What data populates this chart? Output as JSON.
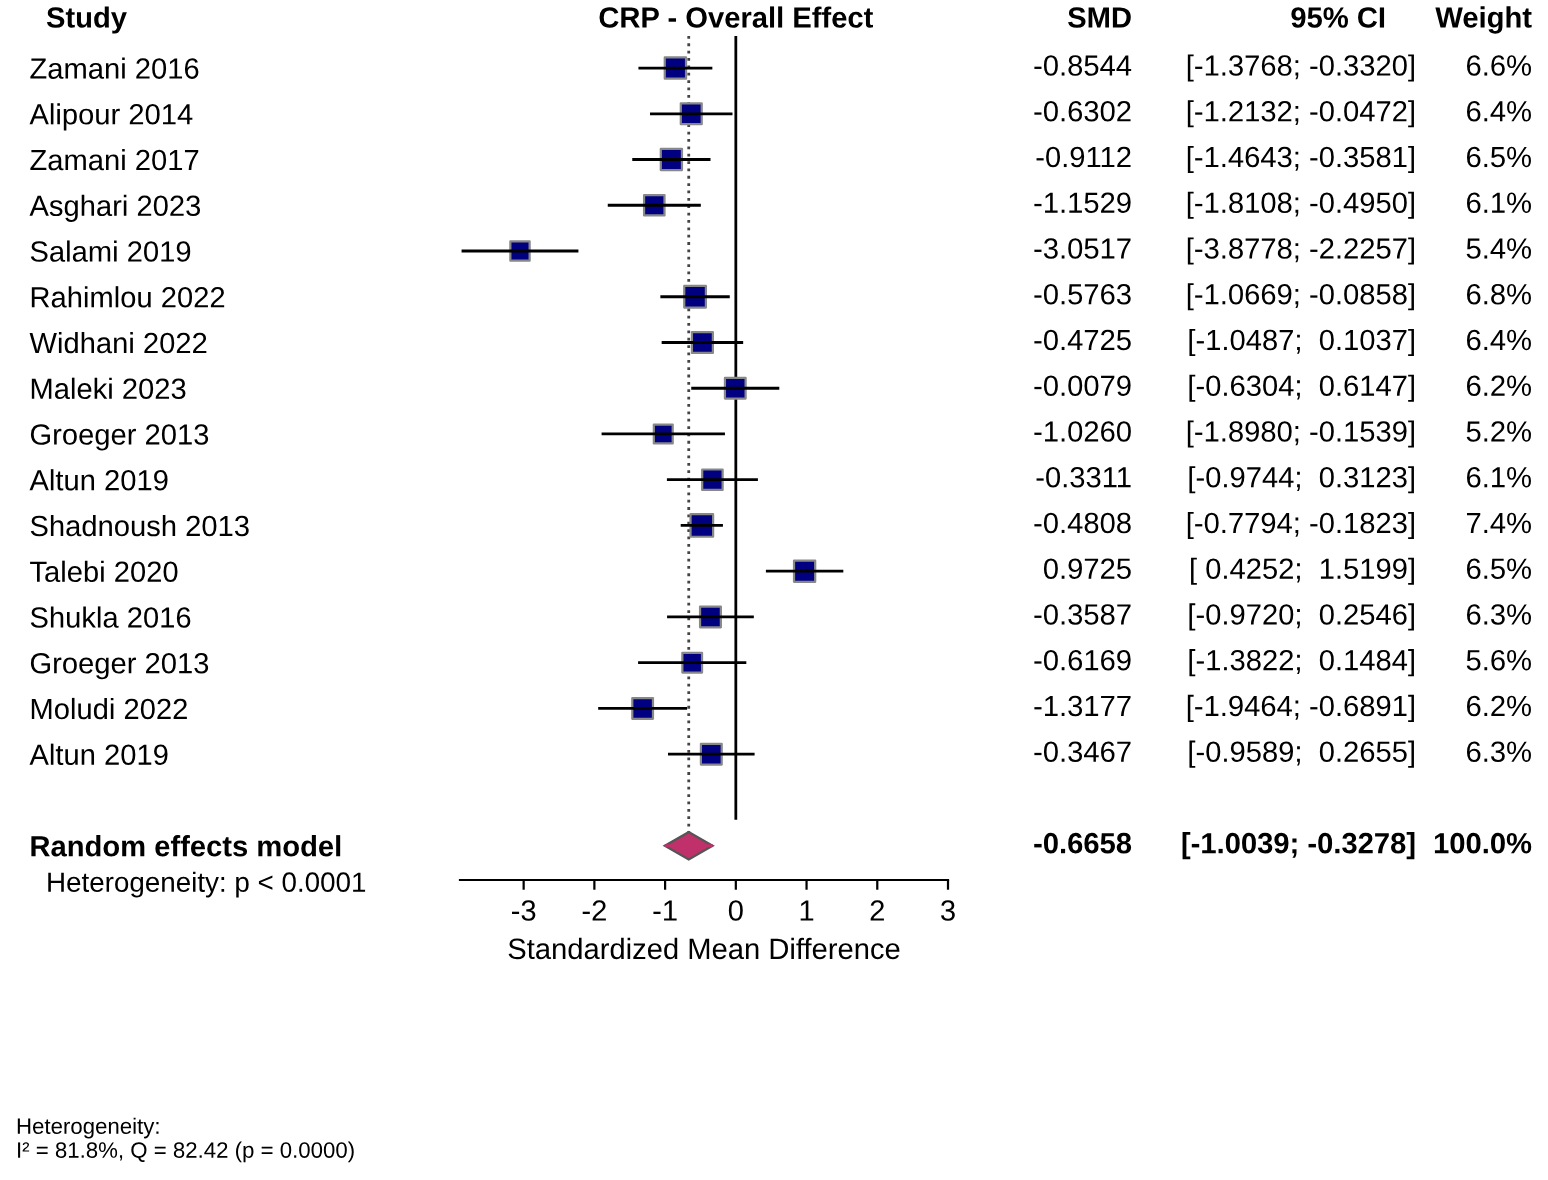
{
  "chart_data": {
    "type": "scatter",
    "orientation": "horizontal",
    "title": "CRP - Overall Effect",
    "xlabel": "Standardized Mean Difference",
    "categories": [
      "Zamani 2016",
      "Alipour 2014",
      "Zamani 2017",
      "Asghari 2023",
      "Salami 2019",
      "Rahimlou 2022",
      "Widhani 2022",
      "Maleki 2023",
      "Groeger 2013",
      "Altun 2019",
      "Shadnoush 2013",
      "Talebi 2020",
      "Shukla 2016",
      "Groeger 2013",
      "Moludi 2022",
      "Altun 2019",
      null,
      "Random effects model"
    ],
    "xlim": [
      -3.9,
      3
    ],
    "xticks": [
      -3,
      -2,
      -1,
      0,
      1,
      2,
      3
    ],
    "marker": "square",
    "series": [
      {
        "color": "#000080",
        "values": [
          -0.8544,
          -0.6302,
          -0.9112,
          -1.1529,
          -3.0517,
          -0.5763,
          -0.4725,
          -0.0079,
          -1.026,
          -0.3311,
          -0.4808,
          0.9725,
          -0.3587,
          -0.6169,
          -1.3177,
          -0.3467,
          null,
          null
        ],
        "errors": [
          [
            -1.3768,
            -0.332
          ],
          [
            -1.2132,
            -0.0472
          ],
          [
            -1.4643,
            -0.3581
          ],
          [
            -1.8108,
            -0.495
          ],
          [
            -3.8778,
            -2.2257
          ],
          [
            -1.0669,
            -0.0858
          ],
          [
            -1.0487,
            0.1037
          ],
          [
            -0.6304,
            0.6147
          ],
          [
            -1.898,
            -0.1539
          ],
          [
            -0.9744,
            0.3123
          ],
          [
            -0.7794,
            -0.1823
          ],
          [
            0.4252,
            1.5199
          ],
          [
            -0.972,
            0.2546
          ],
          [
            -1.3822,
            0.1484
          ],
          [
            -1.9464,
            -0.6891
          ],
          [
            -0.9589,
            0.2655
          ],
          null,
          null
        ],
        "sizes": [
          0.89,
          0.86,
          0.88,
          0.82,
          0.73,
          0.92,
          0.86,
          0.84,
          0.7,
          0.82,
          1,
          0.88,
          0.85,
          0.76,
          0.84,
          0.85,
          null,
          null
        ],
        "value_labels": [
          [
            "-0.8544",
            "[-1.3768; -0.3320]",
            "6.6%"
          ],
          [
            "-0.6302",
            "[-1.2132; -0.0472]",
            "6.4%"
          ],
          [
            "-0.9112",
            "[-1.4643; -0.3581]",
            "6.5%"
          ],
          [
            "-1.1529",
            "[-1.8108; -0.4950]",
            "6.1%"
          ],
          [
            "-3.0517",
            "[-3.8778; -2.2257]",
            "5.4%"
          ],
          [
            "-0.5763",
            "[-1.0669; -0.0858]",
            "6.8%"
          ],
          [
            "-0.4725",
            "[-1.0487;  0.1037]",
            "6.4%"
          ],
          [
            "-0.0079",
            "[-0.6304;  0.6147]",
            "6.2%"
          ],
          [
            "-1.0260",
            "[-1.8980; -0.1539]",
            "5.2%"
          ],
          [
            "-0.3311",
            "[-0.9744;  0.3123]",
            "6.1%"
          ],
          [
            "-0.4808",
            "[-0.7794; -0.1823]",
            "7.4%"
          ],
          [
            "0.9725",
            "[ 0.4252;  1.5199]",
            "6.5%"
          ],
          [
            "-0.3587",
            "[-0.9720;  0.2546]",
            "6.3%"
          ],
          [
            "-0.6169",
            "[-1.3822;  0.1484]",
            "5.6%"
          ],
          [
            "-1.3177",
            "[-1.9464; -0.6891]",
            "6.2%"
          ],
          [
            "-0.3467",
            "[-0.9589;  0.2655]",
            "6.3%"
          ],
          null,
          null
        ]
      },
      {
        "color": "#c0306a",
        "marker": "diamond",
        "values": [
          null,
          null,
          null,
          null,
          null,
          null,
          null,
          null,
          null,
          null,
          null,
          null,
          null,
          null,
          null,
          null,
          null,
          -0.6658
        ],
        "errors": [
          null,
          null,
          null,
          null,
          null,
          null,
          null,
          null,
          null,
          null,
          null,
          null,
          null,
          null,
          null,
          null,
          null,
          [
            -1.0039,
            -0.3278
          ]
        ],
        "value_labels": [
          null,
          null,
          null,
          null,
          null,
          null,
          null,
          null,
          null,
          null,
          null,
          null,
          null,
          null,
          null,
          null,
          null,
          [
            "-0.6658",
            "[-1.0039; -0.3278]",
            "100.0%"
          ]
        ]
      }
    ],
    "ref_lines": [
      {
        "axis": "x",
        "value": 0,
        "line_style": "solid",
        "color": "#000000"
      },
      {
        "axis": "x",
        "value": -0.6658,
        "line_style": "dotted",
        "color": "#444444"
      }
    ],
    "annotations": [
      "Study",
      "SMD",
      "95% CI",
      "Weight",
      "Heterogeneity: p < 0.0001",
      "Heterogeneity:\nI² = 81.8%, Q = 82.42 (p = 0.0000)"
    ]
  }
}
